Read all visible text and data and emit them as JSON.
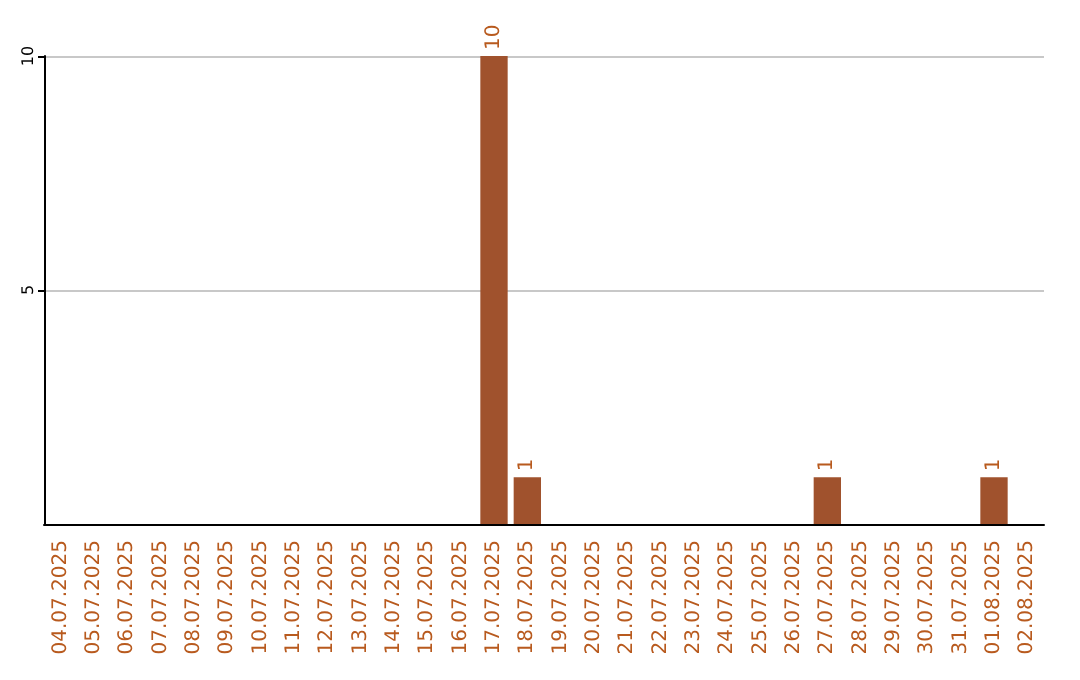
{
  "chart_data": {
    "type": "bar",
    "categories": [
      "04.07.2025",
      "05.07.2025",
      "06.07.2025",
      "07.07.2025",
      "08.07.2025",
      "09.07.2025",
      "10.07.2025",
      "11.07.2025",
      "12.07.2025",
      "13.07.2025",
      "14.07.2025",
      "15.07.2025",
      "16.07.2025",
      "17.07.2025",
      "18.07.2025",
      "19.07.2025",
      "20.07.2025",
      "21.07.2025",
      "22.07.2025",
      "23.07.2025",
      "24.07.2025",
      "25.07.2025",
      "26.07.2025",
      "27.07.2025",
      "28.07.2025",
      "29.07.2025",
      "30.07.2025",
      "31.07.2025",
      "01.08.2025",
      "02.08.2025"
    ],
    "values": [
      0,
      0,
      0,
      0,
      0,
      0,
      0,
      0,
      0,
      0,
      0,
      0,
      0,
      10,
      1,
      0,
      0,
      0,
      0,
      0,
      0,
      0,
      0,
      1,
      0,
      0,
      0,
      0,
      1,
      0
    ],
    "value_labels": [
      null,
      null,
      null,
      null,
      null,
      null,
      null,
      null,
      null,
      null,
      null,
      null,
      null,
      "10",
      "1",
      null,
      null,
      null,
      null,
      null,
      null,
      null,
      null,
      "1",
      null,
      null,
      null,
      null,
      "1",
      null
    ],
    "color": "#a0522d",
    "ylim": [
      0,
      10
    ],
    "yticks": [
      5,
      10
    ],
    "grid": "y"
  }
}
